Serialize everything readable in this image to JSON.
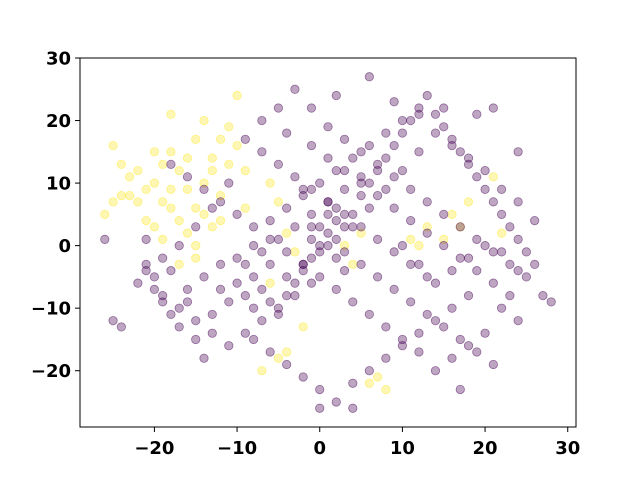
{
  "chart_data": {
    "type": "scatter",
    "title": "",
    "xlabel": "",
    "ylabel": "",
    "xlim": [
      -29,
      31
    ],
    "ylim": [
      -29,
      30
    ],
    "x_ticks": [
      -20,
      -10,
      0,
      10,
      20,
      30
    ],
    "y_ticks": [
      -20,
      -10,
      0,
      10,
      20,
      30
    ],
    "x_tick_labels": [
      "−20",
      "−10",
      "0",
      "10",
      "20",
      "30"
    ],
    "y_tick_labels": [
      "−20",
      "−10",
      "0",
      "10",
      "20",
      "30"
    ],
    "grid": false,
    "legend": "none",
    "point_alpha": 0.35,
    "colors": {
      "purple": "#440154",
      "yellow": "#fde725"
    },
    "series": [
      {
        "color": "#fde725",
        "points": [
          [
            -25,
            16
          ],
          [
            -24,
            13
          ],
          [
            -23,
            8
          ],
          [
            -22,
            7
          ],
          [
            -21,
            9
          ],
          [
            -20,
            10
          ],
          [
            -19,
            13
          ],
          [
            -18,
            15
          ],
          [
            -17,
            12
          ],
          [
            -16,
            9
          ],
          [
            -15,
            6
          ],
          [
            -14,
            10
          ],
          [
            -13,
            14
          ],
          [
            -12,
            17
          ],
          [
            -11,
            19
          ],
          [
            -10,
            16
          ],
          [
            -9,
            12
          ],
          [
            -20,
            3
          ],
          [
            -19,
            1
          ],
          [
            -18,
            6
          ],
          [
            -17,
            4
          ],
          [
            -16,
            2
          ],
          [
            -15,
            0
          ],
          [
            -14,
            5
          ],
          [
            -22,
            12
          ],
          [
            -18,
            21
          ],
          [
            -10,
            24
          ],
          [
            -12,
            8
          ],
          [
            -11,
            13
          ],
          [
            -13,
            3
          ],
          [
            -21,
            4
          ],
          [
            -19,
            7
          ],
          [
            -23,
            11
          ],
          [
            -16,
            14
          ],
          [
            -15,
            17
          ],
          [
            -14,
            20
          ],
          [
            -17,
            -3
          ],
          [
            -15,
            -2
          ],
          [
            -6,
            10
          ],
          [
            -5,
            7
          ],
          [
            -4,
            2
          ],
          [
            -3,
            -1
          ],
          [
            -6,
            -6
          ],
          [
            -5,
            -18
          ],
          [
            -4,
            -17
          ],
          [
            -7,
            -20
          ],
          [
            -2,
            -13
          ],
          [
            3,
            0
          ],
          [
            4,
            -3
          ],
          [
            5,
            2
          ],
          [
            6,
            -22
          ],
          [
            8,
            -23
          ],
          [
            7,
            -21
          ],
          [
            11,
            1
          ],
          [
            12,
            0
          ],
          [
            13,
            3
          ],
          [
            15,
            1
          ],
          [
            16,
            5
          ],
          [
            17,
            3
          ],
          [
            18,
            7
          ],
          [
            21,
            11
          ],
          [
            22,
            2
          ],
          [
            -24,
            8
          ],
          [
            -20,
            15
          ],
          [
            -18,
            9
          ],
          [
            -13,
            12
          ],
          [
            -12,
            4
          ],
          [
            -9,
            6
          ],
          [
            -26,
            5
          ],
          [
            -25,
            7
          ]
        ]
      },
      {
        "color": "#440154",
        "points": [
          [
            -26,
            1
          ],
          [
            -25,
            -12
          ],
          [
            -24,
            -13
          ],
          [
            -22,
            -6
          ],
          [
            -21,
            -3
          ],
          [
            -20,
            -5
          ],
          [
            -19,
            -8
          ],
          [
            -18,
            -11
          ],
          [
            -17,
            -13
          ],
          [
            -16,
            -9
          ],
          [
            -15,
            -15
          ],
          [
            -14,
            -18
          ],
          [
            -13,
            -11
          ],
          [
            -12,
            -7
          ],
          [
            -11,
            -9
          ],
          [
            -10,
            -6
          ],
          [
            -9,
            -8
          ],
          [
            -8,
            -10
          ],
          [
            -7,
            -7
          ],
          [
            -6,
            -9
          ],
          [
            -5,
            -11
          ],
          [
            -4,
            -8
          ],
          [
            -3,
            -6
          ],
          [
            -2,
            -4
          ],
          [
            -1,
            -2
          ],
          [
            0,
            0
          ],
          [
            1,
            2
          ],
          [
            2,
            4
          ],
          [
            3,
            3
          ],
          [
            4,
            5
          ],
          [
            5,
            8
          ],
          [
            6,
            10
          ],
          [
            7,
            12
          ],
          [
            8,
            14
          ],
          [
            9,
            16
          ],
          [
            10,
            18
          ],
          [
            11,
            20
          ],
          [
            12,
            22
          ],
          [
            13,
            24
          ],
          [
            14,
            21
          ],
          [
            15,
            19
          ],
          [
            16,
            17
          ],
          [
            17,
            15
          ],
          [
            18,
            13
          ],
          [
            19,
            11
          ],
          [
            20,
            9
          ],
          [
            21,
            7
          ],
          [
            22,
            5
          ],
          [
            23,
            3
          ],
          [
            24,
            1
          ],
          [
            25,
            -1
          ],
          [
            26,
            -3
          ],
          [
            27,
            -8
          ],
          [
            28,
            -9
          ],
          [
            24,
            -12
          ],
          [
            22,
            -10
          ],
          [
            20,
            -14
          ],
          [
            18,
            -16
          ],
          [
            16,
            -18
          ],
          [
            14,
            -20
          ],
          [
            12,
            -17
          ],
          [
            10,
            -15
          ],
          [
            8,
            -13
          ],
          [
            6,
            -11
          ],
          [
            4,
            -9
          ],
          [
            2,
            -7
          ],
          [
            0,
            -5
          ],
          [
            -2,
            -3
          ],
          [
            -4,
            -1
          ],
          [
            -6,
            1
          ],
          [
            -8,
            3
          ],
          [
            -10,
            5
          ],
          [
            -12,
            7
          ],
          [
            -14,
            9
          ],
          [
            -16,
            11
          ],
          [
            -18,
            13
          ],
          [
            -8,
            -15
          ],
          [
            -6,
            -17
          ],
          [
            -4,
            -19
          ],
          [
            -2,
            -21
          ],
          [
            0,
            -23
          ],
          [
            2,
            -25
          ],
          [
            4,
            -22
          ],
          [
            6,
            -20
          ],
          [
            8,
            -18
          ],
          [
            10,
            -16
          ],
          [
            12,
            -14
          ],
          [
            14,
            -12
          ],
          [
            16,
            -10
          ],
          [
            18,
            -8
          ],
          [
            -3,
            25
          ],
          [
            2,
            24
          ],
          [
            6,
            27
          ],
          [
            9,
            23
          ],
          [
            12,
            21
          ],
          [
            15,
            22
          ],
          [
            19,
            21
          ],
          [
            -7,
            20
          ],
          [
            -4,
            18
          ],
          [
            -1,
            16
          ],
          [
            1,
            14
          ],
          [
            3,
            12
          ],
          [
            5,
            10
          ],
          [
            7,
            8
          ],
          [
            9,
            6
          ],
          [
            11,
            4
          ],
          [
            13,
            2
          ],
          [
            15,
            0
          ],
          [
            17,
            -2
          ],
          [
            19,
            -4
          ],
          [
            21,
            -6
          ],
          [
            23,
            -8
          ],
          [
            -9,
            -3
          ],
          [
            -7,
            -1
          ],
          [
            -5,
            1
          ],
          [
            -3,
            3
          ],
          [
            -1,
            5
          ],
          [
            1,
            7
          ],
          [
            3,
            9
          ],
          [
            5,
            11
          ],
          [
            0,
            -26
          ],
          [
            4,
            -26
          ],
          [
            -2,
            9
          ],
          [
            -1,
            3
          ],
          [
            1,
            0
          ],
          [
            2,
            -2
          ],
          [
            3,
            -4
          ],
          [
            -1,
            -6
          ],
          [
            -3,
            -8
          ],
          [
            -5,
            -10
          ],
          [
            -7,
            -12
          ],
          [
            -9,
            -14
          ],
          [
            -11,
            -16
          ],
          [
            -13,
            -14
          ],
          [
            -15,
            -12
          ],
          [
            -17,
            -10
          ],
          [
            -19,
            -9
          ],
          [
            -21,
            -4
          ],
          [
            -10,
            -2
          ],
          [
            -8,
            -5
          ],
          [
            -6,
            -3
          ],
          [
            -4,
            -5
          ],
          [
            10,
            0
          ],
          [
            12,
            -3
          ],
          [
            14,
            -6
          ],
          [
            16,
            -4
          ],
          [
            18,
            -2
          ],
          [
            20,
            0
          ],
          [
            22,
            -1
          ],
          [
            24,
            -4
          ],
          [
            26,
            4
          ],
          [
            24,
            7
          ],
          [
            22,
            9
          ],
          [
            20,
            12
          ],
          [
            18,
            14
          ],
          [
            16,
            16
          ],
          [
            14,
            18
          ],
          [
            12,
            15
          ],
          [
            10,
            12
          ],
          [
            8,
            9
          ],
          [
            6,
            6
          ],
          [
            4,
            3
          ],
          [
            2,
            1
          ],
          [
            0,
            -1
          ],
          [
            -2,
            -3
          ],
          [
            0,
            3
          ],
          [
            1,
            5
          ],
          [
            2,
            6
          ],
          [
            -1,
            1
          ],
          [
            3,
            -1
          ],
          [
            5,
            -3
          ],
          [
            7,
            -5
          ],
          [
            9,
            -7
          ],
          [
            11,
            -9
          ],
          [
            13,
            -11
          ],
          [
            15,
            -13
          ],
          [
            17,
            -15
          ],
          [
            19,
            -17
          ],
          [
            21,
            -19
          ],
          [
            17,
            -23
          ],
          [
            13,
            -5
          ],
          [
            11,
            -3
          ],
          [
            9,
            -1
          ],
          [
            7,
            1
          ],
          [
            5,
            3
          ],
          [
            3,
            5
          ],
          [
            1,
            7
          ],
          [
            -1,
            9
          ],
          [
            -3,
            11
          ],
          [
            -5,
            13
          ],
          [
            -7,
            15
          ],
          [
            -9,
            17
          ],
          [
            -11,
            10
          ],
          [
            -13,
            6
          ],
          [
            -15,
            3
          ],
          [
            -17,
            0
          ],
          [
            -19,
            -2
          ],
          [
            -21,
            1
          ],
          [
            -12,
            -3
          ],
          [
            -14,
            -5
          ],
          [
            -16,
            -7
          ],
          [
            -18,
            -4
          ],
          [
            -20,
            -7
          ],
          [
            -8,
            0
          ],
          [
            -6,
            4
          ],
          [
            -4,
            6
          ],
          [
            -2,
            8
          ],
          [
            0,
            10
          ],
          [
            2,
            12
          ],
          [
            4,
            14
          ],
          [
            6,
            16
          ],
          [
            8,
            18
          ],
          [
            10,
            20
          ],
          [
            -1,
            22
          ],
          [
            1,
            19
          ],
          [
            3,
            17
          ],
          [
            5,
            15
          ],
          [
            7,
            13
          ],
          [
            9,
            11
          ],
          [
            11,
            9
          ],
          [
            13,
            7
          ],
          [
            15,
            5
          ],
          [
            17,
            3
          ],
          [
            19,
            1
          ],
          [
            21,
            -1
          ],
          [
            23,
            -3
          ],
          [
            25,
            -5
          ],
          [
            24,
            15
          ],
          [
            21,
            22
          ],
          [
            -5,
            22
          ]
        ]
      }
    ]
  }
}
